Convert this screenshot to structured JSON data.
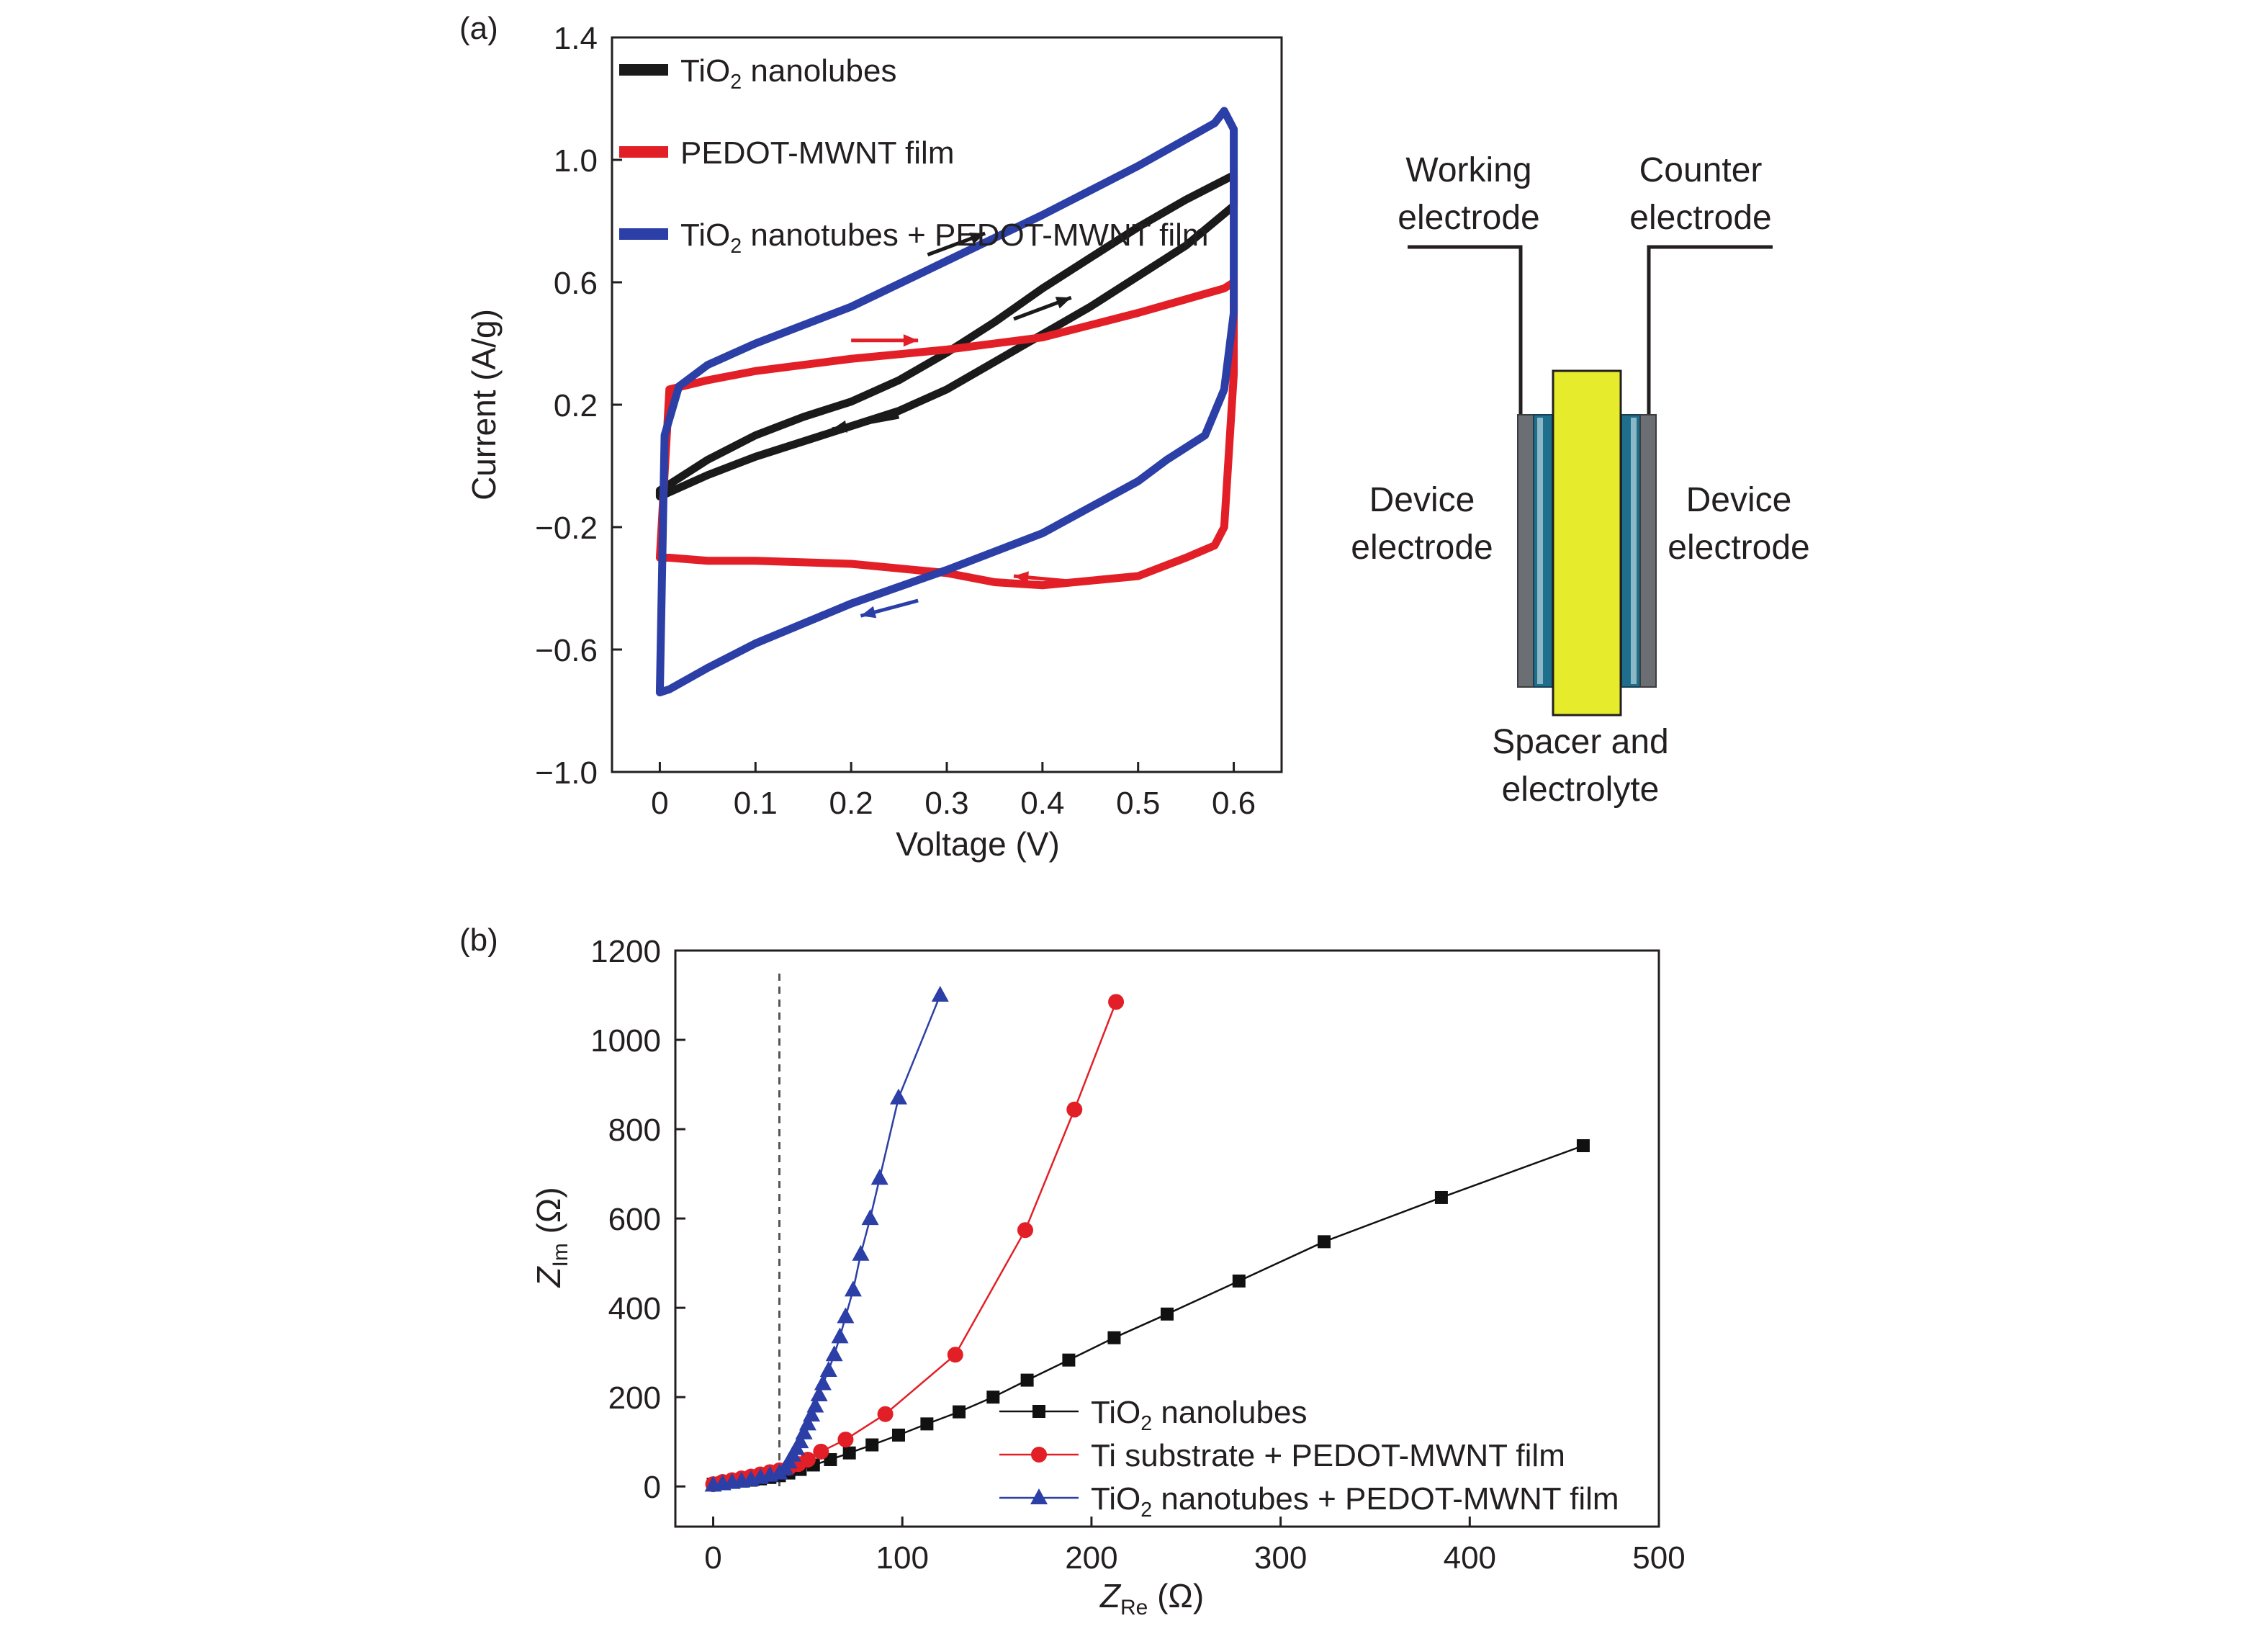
{
  "panel_a_label": "(a)",
  "panel_b_label": "(b)",
  "diagram": {
    "working_line1": "Working",
    "working_line2": "electrode",
    "counter_line1": "Counter",
    "counter_line2": "electrode",
    "device_left_line1": "Device",
    "device_left_line2": "electrode",
    "device_right_line1": "Device",
    "device_right_line2": "electrode",
    "spacer_line1": "Spacer and",
    "spacer_line2": "electrolyte",
    "spacer_color": "#e6ec2b"
  },
  "chart_data": [
    {
      "type": "line",
      "panel": "(a)",
      "xlabel": "Voltage (V)",
      "ylabel": "Current (A/g)",
      "xlim": [
        -0.05,
        0.65
      ],
      "ylim": [
        -1.0,
        1.4
      ],
      "xticks": [
        0,
        0.1,
        0.2,
        0.3,
        0.4,
        0.5,
        0.6
      ],
      "xtick_labels": [
        "0",
        "0.1",
        "0.2",
        "0.3",
        "0.4",
        "0.5",
        "0.6"
      ],
      "yticks": [
        -1.0,
        -0.6,
        -0.2,
        0.2,
        0.6,
        1.0,
        1.4
      ],
      "ytick_labels": [
        "−1.0",
        "−0.6",
        "−0.2",
        "0.2",
        "0.6",
        "1.0",
        "1.4"
      ],
      "legend_position": "top-left",
      "series": [
        {
          "legend_main": "TiO",
          "legend_sub": "2",
          "legend_rest": " nanolubes",
          "color": "#1a1a1a",
          "x": [
            0,
            0.05,
            0.1,
            0.15,
            0.2,
            0.25,
            0.3,
            0.35,
            0.4,
            0.45,
            0.5,
            0.55,
            0.6,
            0.6,
            0.55,
            0.5,
            0.45,
            0.4,
            0.35,
            0.3,
            0.25,
            0.2,
            0.15,
            0.1,
            0.05,
            0,
            0
          ],
          "y": [
            -0.08,
            0.02,
            0.1,
            0.16,
            0.21,
            0.28,
            0.37,
            0.47,
            0.58,
            0.68,
            0.78,
            0.87,
            0.95,
            0.85,
            0.72,
            0.62,
            0.52,
            0.43,
            0.34,
            0.25,
            0.18,
            0.13,
            0.08,
            0.03,
            -0.03,
            -0.1,
            -0.08
          ]
        },
        {
          "legend_main": "PEDOT-MWNT film",
          "legend_sub": "",
          "legend_rest": "",
          "color": "#e21f26",
          "x": [
            0,
            0.01,
            0.05,
            0.1,
            0.2,
            0.3,
            0.4,
            0.5,
            0.59,
            0.6,
            0.6,
            0.59,
            0.58,
            0.55,
            0.5,
            0.4,
            0.35,
            0.3,
            0.2,
            0.1,
            0.05,
            0.01,
            0,
            0
          ],
          "y": [
            -0.3,
            0.25,
            0.28,
            0.31,
            0.35,
            0.38,
            0.42,
            0.5,
            0.58,
            0.6,
            0.3,
            -0.2,
            -0.26,
            -0.3,
            -0.36,
            -0.39,
            -0.38,
            -0.35,
            -0.32,
            -0.31,
            -0.31,
            -0.3,
            -0.3,
            -0.3
          ]
        },
        {
          "legend_main": "TiO",
          "legend_sub": "2",
          "legend_rest": " nanotubes + PEDOT-MWNT film",
          "color": "#2b3fa7",
          "x": [
            0,
            0.005,
            0.02,
            0.05,
            0.1,
            0.2,
            0.3,
            0.4,
            0.5,
            0.58,
            0.59,
            0.6,
            0.6,
            0.59,
            0.57,
            0.53,
            0.5,
            0.4,
            0.3,
            0.2,
            0.1,
            0.05,
            0.01,
            0,
            0
          ],
          "y": [
            -0.74,
            0.1,
            0.26,
            0.33,
            0.4,
            0.52,
            0.67,
            0.82,
            0.98,
            1.12,
            1.16,
            1.1,
            0.5,
            0.25,
            0.1,
            0.02,
            -0.05,
            -0.22,
            -0.34,
            -0.45,
            -0.58,
            -0.66,
            -0.73,
            -0.74,
            -0.74
          ]
        }
      ]
    },
    {
      "type": "scatter",
      "panel": "(b)",
      "xlabel_main": "Z",
      "xlabel_sub": "Re",
      "xlabel_unit": " (Ω)",
      "ylabel_main": "Z",
      "ylabel_sub": "Im",
      "ylabel_unit": " (Ω)",
      "xlim": [
        -20,
        500
      ],
      "ylim": [
        -90,
        1200
      ],
      "xticks": [
        0,
        100,
        200,
        300,
        400,
        500
      ],
      "xtick_labels": [
        "0",
        "100",
        "200",
        "300",
        "400",
        "500"
      ],
      "yticks": [
        0,
        200,
        400,
        600,
        800,
        1000,
        1200
      ],
      "ytick_labels": [
        "0",
        "200",
        "400",
        "600",
        "800",
        "1000",
        "1200"
      ],
      "reference_line_x": 35,
      "legend_position": "bottom-right",
      "series": [
        {
          "legend_main": "TiO",
          "legend_sub": "2",
          "legend_rest": " nanolubes",
          "color": "#111111",
          "marker": "square",
          "x": [
            0,
            5,
            10,
            15,
            20,
            25,
            30,
            35,
            40,
            46,
            53,
            62,
            72,
            84,
            98,
            113,
            130,
            148,
            166,
            188,
            212,
            240,
            278,
            323,
            385,
            460
          ],
          "y": [
            5,
            8,
            10,
            12,
            14,
            17,
            20,
            24,
            30,
            38,
            48,
            60,
            75,
            93,
            115,
            140,
            167,
            200,
            238,
            283,
            333,
            386,
            460,
            548,
            647,
            763
          ]
        },
        {
          "legend_main": "Ti substrate + PEDOT-MWNT film",
          "legend_sub": "",
          "legend_rest": "",
          "color": "#e21f26",
          "marker": "circle",
          "x": [
            0,
            5,
            10,
            15,
            20,
            25,
            30,
            35,
            40,
            45,
            50,
            57,
            70,
            91,
            128,
            165,
            191,
            213
          ],
          "y": [
            5,
            10,
            14,
            18,
            22,
            27,
            32,
            36,
            42,
            50,
            60,
            78,
            105,
            162,
            295,
            574,
            844,
            1085
          ]
        },
        {
          "legend_main": "TiO",
          "legend_sub": "2",
          "legend_rest": " nanotubes + PEDOT-MWNT film",
          "color": "#2b3fa7",
          "marker": "triangle",
          "x": [
            0,
            5,
            10,
            15,
            20,
            25,
            30,
            35,
            38,
            40,
            42,
            44,
            46,
            48,
            50,
            52,
            54,
            56,
            58,
            61,
            64,
            67,
            70,
            74,
            78,
            83,
            88,
            98,
            120
          ],
          "y": [
            3,
            6,
            9,
            12,
            15,
            20,
            25,
            30,
            40,
            55,
            70,
            85,
            100,
            120,
            140,
            160,
            180,
            205,
            230,
            260,
            295,
            335,
            380,
            440,
            520,
            600,
            690,
            870,
            1100
          ]
        }
      ]
    }
  ]
}
